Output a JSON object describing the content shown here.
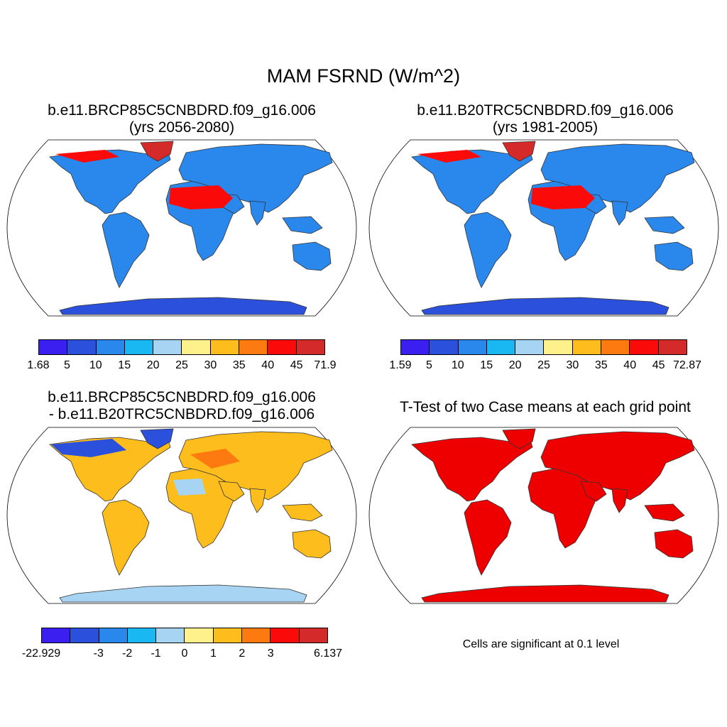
{
  "title": "MAM FSRND (W/m^2)",
  "panels": {
    "p1": {
      "line1": "b.e11.BRCP85C5CNBDRD.f09_g16.006",
      "line2": "(yrs 2056-2080)"
    },
    "p2": {
      "line1": "b.e11.B20TRC5CNBDRD.f09_g16.006",
      "line2": "(yrs 1981-2005)"
    },
    "p3": {
      "line1": "b.e11.BRCP85C5CNBDRD.f09_g16.006",
      "line2": "- b.e11.B20TRC5CNBDRD.f09_g16.006"
    },
    "p4": {
      "line1": "T-Test of two Case means at each grid point",
      "note": "Cells are significant at 0.1 level"
    }
  },
  "colorbars": {
    "cb1": {
      "colors": [
        "#3a1ff0",
        "#2a50dc",
        "#2a88ec",
        "#1ab8f2",
        "#a6d4f2",
        "#fef08a",
        "#fdbd1c",
        "#fd7a10",
        "#fb0a0a",
        "#d42a2a"
      ],
      "labels": [
        "1.68",
        "5",
        "10",
        "15",
        "20",
        "25",
        "30",
        "35",
        "40",
        "45",
        "71.9"
      ]
    },
    "cb2": {
      "colors": [
        "#3a1ff0",
        "#2a50dc",
        "#2a88ec",
        "#1ab8f2",
        "#a6d4f2",
        "#fef08a",
        "#fdbd1c",
        "#fd7a10",
        "#fb0a0a",
        "#d42a2a"
      ],
      "labels": [
        "1.59",
        "5",
        "10",
        "15",
        "20",
        "25",
        "30",
        "35",
        "40",
        "45",
        "72.87"
      ]
    },
    "cb3": {
      "colors": [
        "#3a1ff0",
        "#2a50dc",
        "#2a88ec",
        "#1ab8f2",
        "#a6d4f2",
        "#fef08a",
        "#fdbd1c",
        "#fd7a10",
        "#fb0a0a",
        "#d42a2a"
      ],
      "labels": [
        "-22.929",
        "",
        "-3",
        "-2",
        "-1",
        "0",
        "1",
        "2",
        "3",
        "",
        "6.137"
      ]
    }
  },
  "map_palette": {
    "ocean": "#ffffff",
    "abs_land": "#2a88ec",
    "abs_ice": "#2a50dc",
    "abs_desert": "#d42a2a",
    "abs_hot": "#fb0a0a",
    "diff_land": "#fdbd1c",
    "diff_cold": "#2a50dc",
    "diff_warm": "#fd7a10",
    "diff_light": "#a6d4f2",
    "sig": "#ee0000"
  }
}
